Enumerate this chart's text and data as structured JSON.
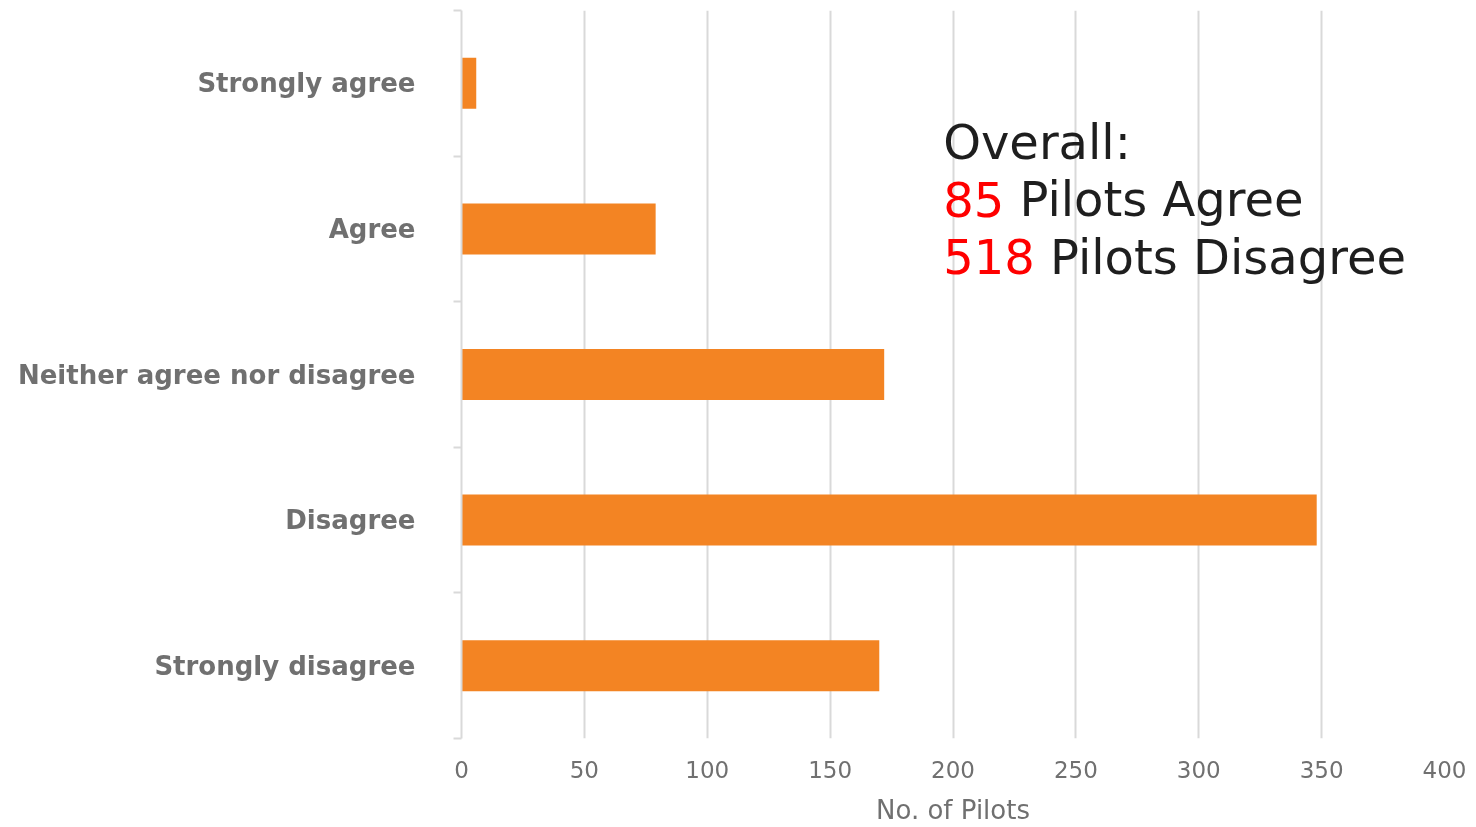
{
  "chart_data": {
    "type": "bar",
    "orientation": "horizontal",
    "categories": [
      "Strongly agree",
      "Agree",
      "Neither agree nor disagree",
      "Disagree",
      "Strongly disagree"
    ],
    "values": [
      6,
      79,
      172,
      348,
      170
    ],
    "color": "#f38423",
    "xlabel": "No. of Pilots",
    "xlim": [
      0,
      400
    ],
    "xticks": [
      0,
      50,
      100,
      150,
      200,
      250,
      300,
      350,
      400
    ],
    "grid": "x",
    "annotations": [
      "Overall:",
      "85 Pilots Agree",
      "518 Pilots Disagree"
    ]
  }
}
